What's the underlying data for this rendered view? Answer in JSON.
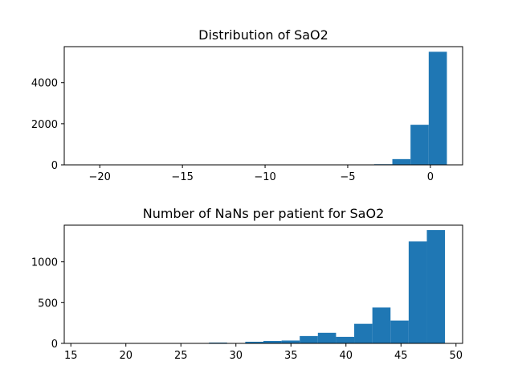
{
  "chart_data": [
    {
      "type": "bar",
      "title": "Distribution of SaO2",
      "xlabel": "",
      "ylabel": "",
      "xlim": [
        -22.15,
        1.95
      ],
      "ylim": [
        0,
        5750
      ],
      "xticks": [
        -20,
        -15,
        -10,
        -5,
        0
      ],
      "xtick_labels": [
        "−20",
        "−15",
        "−10",
        "−5",
        "0"
      ],
      "yticks": [
        0,
        2000,
        4000
      ],
      "ytick_labels": [
        "0",
        "2000",
        "4000"
      ],
      "bin_edges": [
        -21.0,
        -19.9,
        -18.8,
        -17.7,
        -16.6,
        -15.5,
        -14.4,
        -13.3,
        -12.2,
        -11.1,
        -10.0,
        -8.9,
        -7.8,
        -6.7,
        -5.6,
        -4.5,
        -3.4,
        -2.3,
        -1.2,
        -0.1,
        1.0
      ],
      "counts": [
        0,
        0,
        0,
        0,
        0,
        0,
        0,
        0,
        0,
        0,
        0,
        0,
        0,
        0,
        0,
        5,
        30,
        280,
        1950,
        5500
      ],
      "color": "#1f77b4",
      "grid": false
    },
    {
      "type": "bar",
      "title": "Number of NaNs per patient for SaO2",
      "xlabel": "",
      "ylabel": "",
      "xlim": [
        14.4,
        50.6
      ],
      "ylim": [
        0,
        1450
      ],
      "xticks": [
        15,
        20,
        25,
        30,
        35,
        40,
        45,
        50
      ],
      "xtick_labels": [
        "15",
        "20",
        "25",
        "30",
        "35",
        "40",
        "45",
        "50"
      ],
      "yticks": [
        0,
        500,
        1000
      ],
      "ytick_labels": [
        "0",
        "500",
        "1000"
      ],
      "bin_edges": [
        16.0,
        17.65,
        19.3,
        20.95,
        22.6,
        24.25,
        25.9,
        27.55,
        29.2,
        30.85,
        32.5,
        34.15,
        35.8,
        37.45,
        39.1,
        40.75,
        42.4,
        44.05,
        45.7,
        47.35,
        49.0
      ],
      "counts": [
        0,
        0,
        0,
        0,
        0,
        0,
        0,
        10,
        3,
        20,
        30,
        35,
        90,
        130,
        80,
        240,
        440,
        280,
        1250,
        1390
      ],
      "color": "#1f77b4",
      "grid": false
    }
  ]
}
